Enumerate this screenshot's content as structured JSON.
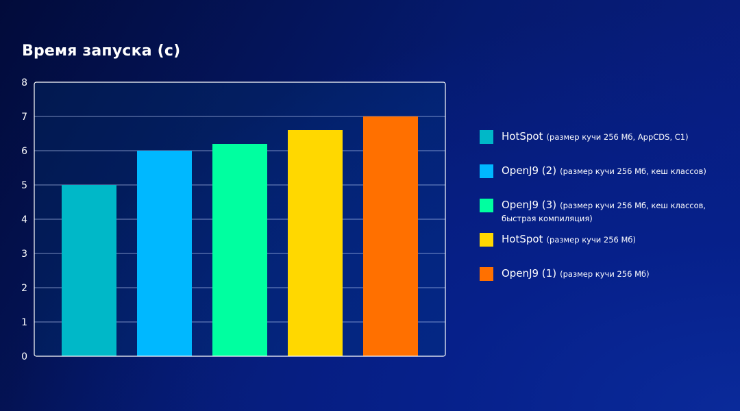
{
  "chart_data": {
    "type": "bar",
    "title": "Время запуска (с)",
    "xlabel": "",
    "ylabel": "",
    "ylim": [
      0,
      8
    ],
    "yticks": [
      "0",
      "1",
      "2",
      "3",
      "4",
      "5",
      "6",
      "7",
      "8"
    ],
    "grid": true,
    "legend_position": "right",
    "categories": [
      "HotSpot (размер кучи 256 Мб, AppCDS, C1)",
      "OpenJ9 (2) (размер кучи 256 Мб, кеш классов)",
      "OpenJ9 (3) (размер кучи 256 Мб, кеш классов, быстрая компиляция)",
      "HotSpot (размер кучи 256 Мб)",
      "OpenJ9 (1) (размер кучи 256 Мб)"
    ],
    "values": [
      5,
      6,
      6.2,
      6.6,
      7
    ],
    "colors": [
      "#00b8c8",
      "#00b8ff",
      "#00ffa0",
      "#ffd800",
      "#ff7000"
    ],
    "legend": [
      {
        "name": "HotSpot",
        "detail": "(размер кучи 256 Мб, AppCDS, C1)"
      },
      {
        "name": "OpenJ9 (2)",
        "detail": "(размер кучи 256 Мб, кеш классов)"
      },
      {
        "name": "OpenJ9 (3)",
        "detail": "(размер кучи 256 Мб, кеш классов, быстрая компиляция)"
      },
      {
        "name": "HotSpot",
        "detail": "(размер кучи 256 Мб)"
      },
      {
        "name": "OpenJ9 (1)",
        "detail": "(размер кучи 256 Мб)"
      }
    ]
  }
}
